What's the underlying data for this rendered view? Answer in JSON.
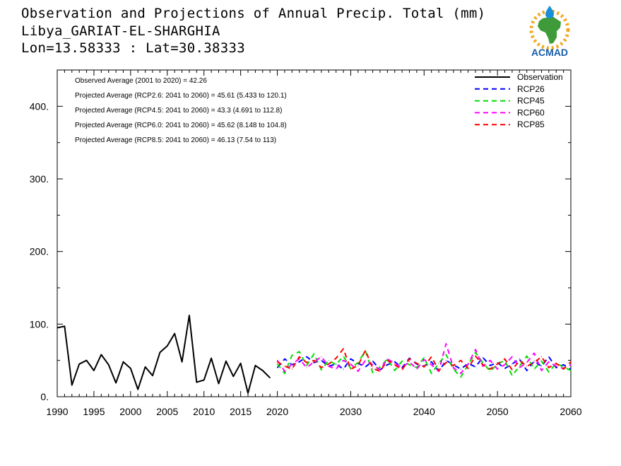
{
  "title": {
    "line1": "Observation and Projections of Annual Precip. Total (mm)",
    "line2": "Libya_GARIAT-EL-SHARGHIA",
    "line3": "Lon=13.58333 : Lat=30.38333"
  },
  "logo": {
    "text": "ACMAD",
    "icon": "africa-map-logo",
    "brand_color": "#1a5ea8",
    "accent": "#f2a81d",
    "land": "#3f9b3a"
  },
  "stats": [
    "Observed Average (2001 to 2020) = 42.26",
    "Projected Average (RCP2.6: 2041 to 2060) = 45.61 (5.433 to 120.1)",
    "Projected Average (RCP4.5: 2041 to 2060) = 43.3 (4.691 to 112.8)",
    "Projected Average (RCP6.0: 2041 to 2060) = 45.62 (8.148 to 104.8)",
    "Projected Average (RCP8.5: 2041 to 2060) = 46.13 (7.54 to 113)"
  ],
  "chart_data": {
    "type": "line",
    "xlim": [
      1990,
      2060
    ],
    "ylim": [
      0,
      450
    ],
    "x_ticks": [
      1990,
      1995,
      2000,
      2005,
      2010,
      2015,
      2020,
      2030,
      2040,
      2050,
      2060
    ],
    "x_tick_labels": [
      "1990",
      "1995",
      "2000",
      "2005",
      "2010",
      "2015",
      "2020",
      "2030",
      "2040",
      "2050",
      "2060"
    ],
    "y_ticks": [
      0,
      100,
      200,
      300,
      400
    ],
    "y_tick_labels": [
      "0.",
      "100.",
      "200.",
      "300.",
      "400."
    ],
    "legend_position": "top-right",
    "series": [
      {
        "name": "Observation",
        "color": "#000000",
        "dash": "solid",
        "x": [
          1990,
          1991,
          1992,
          1993,
          1994,
          1995,
          1996,
          1997,
          1998,
          1999,
          2000,
          2001,
          2002,
          2003,
          2004,
          2005,
          2006,
          2007,
          2008,
          2009,
          2010,
          2011,
          2012,
          2013,
          2014,
          2015,
          2016,
          2017,
          2018,
          2019,
          2020
        ],
        "values": [
          95,
          97,
          16,
          45,
          50,
          36,
          58,
          44,
          19,
          48,
          39,
          10,
          41,
          29,
          61,
          70,
          87,
          48,
          112,
          20,
          23,
          53,
          18,
          49,
          28,
          46,
          5,
          43,
          36,
          26,
          null
        ]
      },
      {
        "name": "RCP26",
        "color": "#0000ff",
        "dash": "dashed",
        "x": [
          2020,
          2021,
          2022,
          2023,
          2024,
          2025,
          2026,
          2027,
          2028,
          2029,
          2030,
          2031,
          2032,
          2033,
          2034,
          2035,
          2036,
          2037,
          2038,
          2039,
          2040,
          2041,
          2042,
          2043,
          2044,
          2045,
          2046,
          2047,
          2048,
          2049,
          2050,
          2051,
          2052,
          2053,
          2054,
          2055,
          2056,
          2057,
          2058,
          2059,
          2060
        ],
        "values": [
          40,
          52,
          44,
          48,
          55,
          47,
          50,
          42,
          45,
          38,
          52,
          46,
          41,
          49,
          37,
          44,
          48,
          40,
          53,
          45,
          42,
          48,
          35,
          50,
          44,
          38,
          46,
          41,
          54,
          43,
          47,
          39,
          45,
          52,
          36,
          49,
          42,
          55,
          40,
          44,
          38
        ]
      },
      {
        "name": "RCP45",
        "color": "#00dd00",
        "dash": "dashed",
        "x": [
          2020,
          2021,
          2022,
          2023,
          2024,
          2025,
          2026,
          2027,
          2028,
          2029,
          2030,
          2031,
          2032,
          2033,
          2034,
          2035,
          2036,
          2037,
          2038,
          2039,
          2040,
          2041,
          2042,
          2043,
          2044,
          2045,
          2046,
          2047,
          2048,
          2049,
          2050,
          2051,
          2052,
          2053,
          2054,
          2055,
          2056,
          2057,
          2058,
          2059,
          2060
        ],
        "values": [
          45,
          32,
          57,
          62,
          43,
          59,
          37,
          50,
          44,
          56,
          39,
          47,
          63,
          33,
          41,
          52,
          36,
          49,
          44,
          40,
          54,
          32,
          46,
          58,
          38,
          27,
          44,
          61,
          47,
          35,
          45,
          50,
          29,
          42,
          56,
          38,
          49,
          34,
          46,
          41,
          36
        ]
      },
      {
        "name": "RCP60",
        "color": "#ff00ff",
        "dash": "dashed",
        "x": [
          2020,
          2021,
          2022,
          2023,
          2024,
          2025,
          2026,
          2027,
          2028,
          2029,
          2030,
          2031,
          2032,
          2033,
          2034,
          2035,
          2036,
          2037,
          2038,
          2039,
          2040,
          2041,
          2042,
          2043,
          2044,
          2045,
          2046,
          2047,
          2048,
          2049,
          2050,
          2051,
          2052,
          2053,
          2054,
          2055,
          2056,
          2057,
          2058,
          2059,
          2060
        ],
        "values": [
          50,
          35,
          45,
          52,
          40,
          48,
          55,
          42,
          38,
          50,
          45,
          35,
          50,
          44,
          37,
          52,
          46,
          40,
          48,
          38,
          51,
          44,
          35,
          73,
          40,
          32,
          45,
          65,
          42,
          50,
          38,
          44,
          55,
          40,
          47,
          60,
          36,
          48,
          42,
          39,
          44
        ]
      },
      {
        "name": "RCP85",
        "color": "#ff0000",
        "dash": "dashed",
        "x": [
          2020,
          2021,
          2022,
          2023,
          2024,
          2025,
          2026,
          2027,
          2028,
          2029,
          2030,
          2031,
          2032,
          2033,
          2034,
          2035,
          2036,
          2037,
          2038,
          2039,
          2040,
          2041,
          2042,
          2043,
          2044,
          2045,
          2046,
          2047,
          2048,
          2049,
          2050,
          2051,
          2052,
          2053,
          2054,
          2055,
          2056,
          2057,
          2058,
          2059,
          2060
        ],
        "values": [
          48,
          42,
          38,
          55,
          47,
          50,
          40,
          45,
          53,
          66,
          38,
          43,
          64,
          39,
          35,
          50,
          44,
          37,
          52,
          46,
          41,
          55,
          36,
          47,
          43,
          50,
          39,
          56,
          44,
          38,
          45,
          52,
          37,
          50,
          42,
          47,
          55,
          40,
          46,
          38,
          48
        ]
      }
    ]
  }
}
